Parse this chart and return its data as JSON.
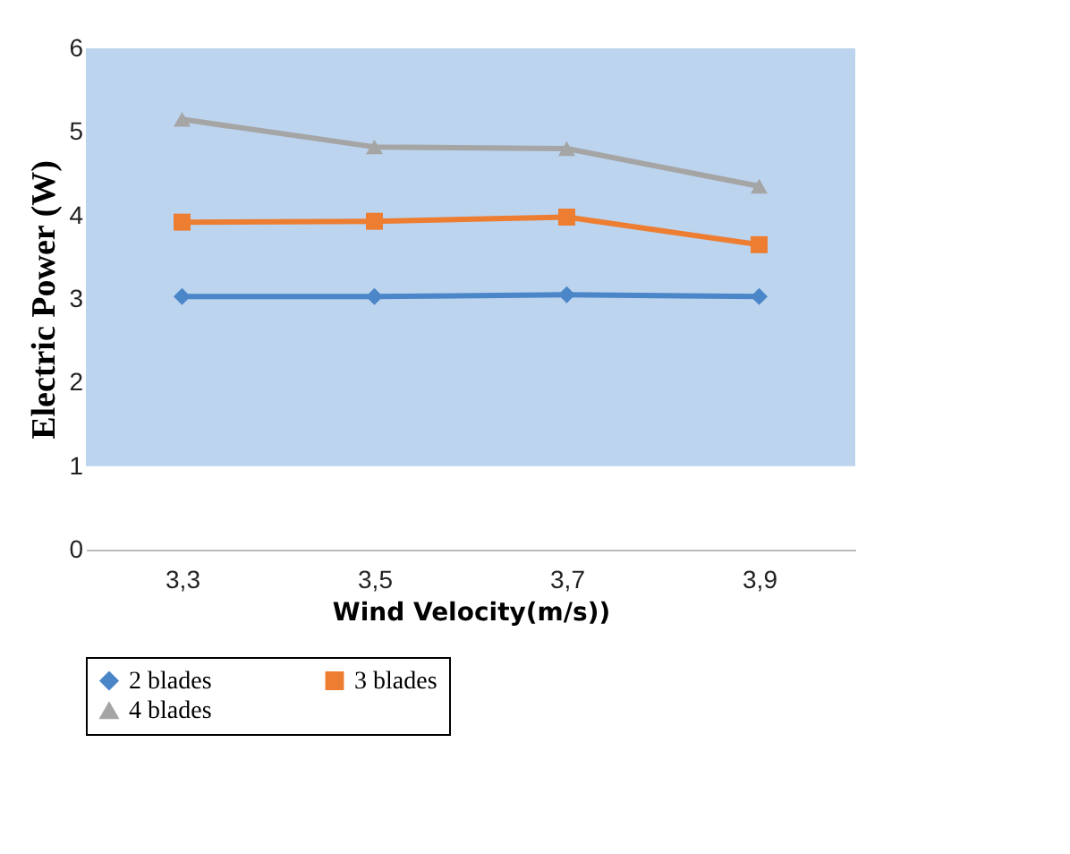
{
  "chart_data": {
    "type": "line",
    "xlabel": "Wind Velocity(m/s))",
    "ylabel": "Electric Power (W)",
    "categories": [
      "3,3",
      "3,5",
      "3,7",
      "3,9"
    ],
    "series": [
      {
        "name": "2 blades",
        "color": "#4a86c8",
        "marker": "diamond",
        "values": [
          3.03,
          3.03,
          3.05,
          3.03
        ]
      },
      {
        "name": "3 blades",
        "color": "#ed7d31",
        "marker": "square",
        "values": [
          3.92,
          3.93,
          3.98,
          3.65
        ]
      },
      {
        "name": "4 blades",
        "color": "#a5a5a5",
        "marker": "triangle",
        "values": [
          5.15,
          4.82,
          4.8,
          4.35
        ]
      }
    ],
    "ylim": [
      0,
      6
    ],
    "yticks": [
      0,
      1,
      2,
      3,
      4,
      5,
      6
    ],
    "grid": false,
    "legend": "bottom",
    "bands": [
      {
        "axis": "y",
        "from": 1,
        "to": 6,
        "color": "#bcd4ee"
      }
    ]
  }
}
